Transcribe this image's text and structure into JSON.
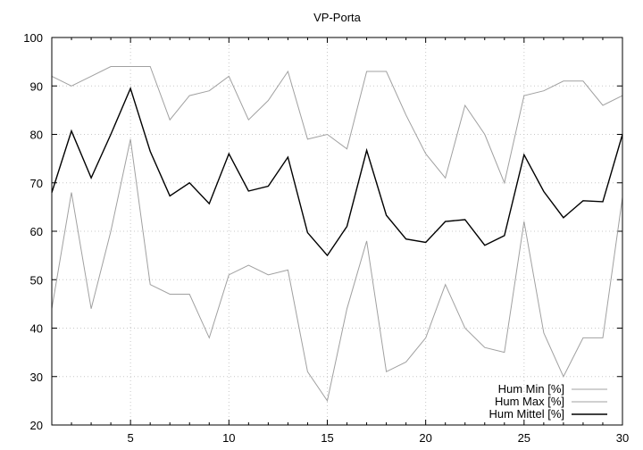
{
  "chart_data": {
    "type": "line",
    "title": "VP-Porta",
    "xlabel": "",
    "ylabel": "",
    "xlim": [
      1,
      30
    ],
    "ylim": [
      20,
      100
    ],
    "xticks": [
      5,
      10,
      15,
      20,
      25,
      30
    ],
    "yticks": [
      20,
      30,
      40,
      50,
      60,
      70,
      80,
      90,
      100
    ],
    "grid": true,
    "legend_position": "bottom-right",
    "x": [
      1,
      2,
      3,
      4,
      5,
      6,
      7,
      8,
      9,
      10,
      11,
      12,
      13,
      14,
      15,
      16,
      17,
      18,
      19,
      20,
      21,
      22,
      23,
      24,
      25,
      26,
      27,
      28,
      29,
      30
    ],
    "series": [
      {
        "name": "Hum Min [%]",
        "color": "#a0a0a0",
        "values": [
          44,
          68,
          44,
          60,
          79,
          49,
          47,
          47,
          38,
          51,
          53,
          51,
          52,
          31,
          25,
          44,
          58,
          31,
          33,
          38,
          49,
          40,
          36,
          35,
          62,
          39,
          30,
          38,
          38,
          67
        ]
      },
      {
        "name": "Hum Max [%]",
        "color": "#a0a0a0",
        "values": [
          92,
          90,
          92,
          94,
          94,
          94,
          83,
          88,
          89,
          92,
          83,
          87,
          93,
          79,
          80,
          77,
          93,
          93,
          84,
          76,
          71,
          86,
          80,
          70,
          88,
          89,
          91,
          91,
          86,
          88
        ]
      },
      {
        "name": "Hum Mittel [%]",
        "color": "#000000",
        "values": [
          68,
          80.7,
          71,
          80,
          89.5,
          76.5,
          67.3,
          70,
          65.7,
          76,
          68.3,
          69.3,
          75.3,
          59.7,
          55,
          61,
          76.7,
          63.3,
          58.4,
          57.7,
          62,
          62.4,
          57.1,
          59.1,
          75.8,
          68.2,
          62.8,
          66.3,
          66.1,
          80
        ]
      }
    ]
  }
}
